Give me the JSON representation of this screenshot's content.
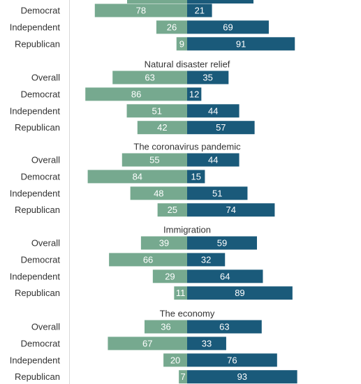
{
  "colors": {
    "left_series": "#76a98f",
    "right_series": "#1a5a7a",
    "axis_line": "#d8d8d8",
    "text": "#333333",
    "background": "#ffffff"
  },
  "chart_data": {
    "type": "bar",
    "orientation": "horizontal",
    "layout": "diverging",
    "ylim": [
      0,
      100
    ],
    "series_order": [
      "left",
      "right"
    ],
    "top_partial_group": {
      "rows": [
        {
          "label": "Democrat",
          "left": 78,
          "right": 21
        },
        {
          "label": "Independent",
          "left": 26,
          "right": 69
        },
        {
          "label": "Republican",
          "left": 9,
          "right": 91
        }
      ]
    },
    "groups": [
      {
        "title": "Natural disaster relief",
        "rows": [
          {
            "label": "Overall",
            "left": 63,
            "right": 35
          },
          {
            "label": "Democrat",
            "left": 86,
            "right": 12
          },
          {
            "label": "Independent",
            "left": 51,
            "right": 44
          },
          {
            "label": "Republican",
            "left": 42,
            "right": 57
          }
        ]
      },
      {
        "title": "The coronavirus pandemic",
        "rows": [
          {
            "label": "Overall",
            "left": 55,
            "right": 44
          },
          {
            "label": "Democrat",
            "left": 84,
            "right": 15
          },
          {
            "label": "Independent",
            "left": 48,
            "right": 51
          },
          {
            "label": "Republican",
            "left": 25,
            "right": 74
          }
        ]
      },
      {
        "title": "Immigration",
        "rows": [
          {
            "label": "Overall",
            "left": 39,
            "right": 59
          },
          {
            "label": "Democrat",
            "left": 66,
            "right": 32
          },
          {
            "label": "Independent",
            "left": 29,
            "right": 64
          },
          {
            "label": "Republican",
            "left": 11,
            "right": 89
          }
        ]
      },
      {
        "title": "The economy",
        "rows": [
          {
            "label": "Overall",
            "left": 36,
            "right": 63
          },
          {
            "label": "Democrat",
            "left": 67,
            "right": 33
          },
          {
            "label": "Independent",
            "left": 20,
            "right": 76
          },
          {
            "label": "Republican",
            "left": 7,
            "right": 93
          }
        ]
      }
    ]
  }
}
